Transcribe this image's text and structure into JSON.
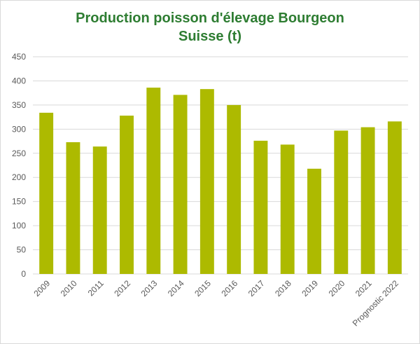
{
  "chart_data": {
    "type": "bar",
    "title_line1": "Production poisson d'élevage Bourgeon",
    "title_line2": "Suisse (t)",
    "xlabel": "",
    "ylabel": "",
    "categories": [
      "2009",
      "2010",
      "2011",
      "2012",
      "2013",
      "2014",
      "2015",
      "2016",
      "2017",
      "2018",
      "2019",
      "2020",
      "2021",
      "Prognostic 2022"
    ],
    "values": [
      334,
      273,
      264,
      328,
      386,
      371,
      383,
      350,
      276,
      268,
      218,
      297,
      304,
      316
    ],
    "ylim": [
      0,
      450
    ],
    "yticks": [
      0,
      50,
      100,
      150,
      200,
      250,
      300,
      350,
      400,
      450
    ],
    "grid": true,
    "legend": "none",
    "colors": {
      "bar": "#adba00",
      "grid": "#d9d9d9",
      "title": "#2e7d32",
      "tick": "#595959"
    }
  }
}
